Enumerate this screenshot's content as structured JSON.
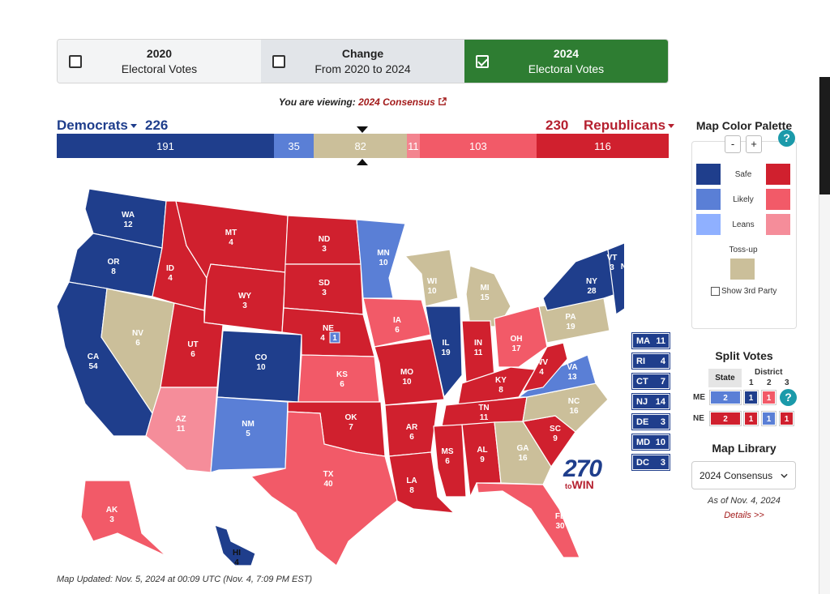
{
  "tabs": [
    {
      "title": "2020",
      "sub": "Electoral Votes"
    },
    {
      "title": "Change",
      "sub": "From 2020 to 2024"
    },
    {
      "title": "2024",
      "sub": "Electoral Votes"
    }
  ],
  "viewing": {
    "prefix": "You are viewing:",
    "value": "2024 Consensus"
  },
  "democrats": {
    "label": "Democrats",
    "total": "226"
  },
  "republicans": {
    "label": "Republicans",
    "total": "230"
  },
  "bar": [
    {
      "label": "191",
      "value": 191,
      "color": "#1f3e8c"
    },
    {
      "label": "35",
      "value": 35,
      "color": "#5a7fd6"
    },
    {
      "label": "82",
      "value": 82,
      "color": "#cbbf9a"
    },
    {
      "label": "11",
      "value": 11,
      "color": "#f3848f"
    },
    {
      "label": "103",
      "value": 103,
      "color": "#f25a68"
    },
    {
      "label": "116",
      "value": 116,
      "color": "#d0202e"
    }
  ],
  "colors": {
    "safe_d": "#1f3e8c",
    "likely_d": "#5a7fd6",
    "lean_d": "#8fb0ff",
    "tossup": "#cbbf9a",
    "lean_r": "#f58d9a",
    "likely_r": "#f25a68",
    "safe_r": "#d0202e",
    "tab_active": "#2e7d32"
  },
  "states": {
    "WA": "12",
    "OR": "8",
    "CA": "54",
    "NV": "6",
    "ID": "4",
    "MT": "4",
    "WY": "3",
    "UT": "6",
    "AZ": "11",
    "CO": "10",
    "NM": "5",
    "ND": "3",
    "SD": "3",
    "NE": "4",
    "NE_d": "1",
    "KS": "6",
    "OK": "7",
    "TX": "40",
    "MN": "10",
    "IA": "6",
    "MO": "10",
    "AR": "6",
    "LA": "8",
    "WI": "10",
    "IL": "19",
    "MS": "6",
    "MI": "15",
    "IN": "11",
    "KY": "8",
    "TN": "11",
    "AL": "9",
    "OH": "17",
    "GA": "16",
    "FL": "30",
    "SC": "9",
    "NC": "16",
    "VA": "13",
    "WV": "4",
    "PA": "19",
    "NY": "28",
    "VT": "3",
    "NH": "4",
    "ME": "2",
    "ME_d1": "1",
    "ME_d2": "1",
    "AK": "3",
    "HI": "4"
  },
  "small_states": [
    {
      "abbr": "MA",
      "ev": "11"
    },
    {
      "abbr": "RI",
      "ev": "4"
    },
    {
      "abbr": "CT",
      "ev": "7"
    },
    {
      "abbr": "NJ",
      "ev": "14"
    },
    {
      "abbr": "DE",
      "ev": "3"
    },
    {
      "abbr": "MD",
      "ev": "10"
    },
    {
      "abbr": "DC",
      "ev": "3"
    }
  ],
  "logo": {
    "number": "270",
    "to": "to",
    "win": "WIN"
  },
  "updated": "Map Updated: Nov. 5, 2024 at 00:09 UTC (Nov. 4, 7:09 PM EST)",
  "palette": {
    "title": "Map Color Palette",
    "minus": "-",
    "plus": "+",
    "help": "?",
    "safe": "Safe",
    "likely": "Likely",
    "leans": "Leans",
    "tossup": "Toss-up",
    "show3": "Show 3rd Party"
  },
  "split": {
    "title": "Split Votes",
    "state_hdr": "State",
    "district_hdr": "District",
    "d1": "1",
    "d2": "2",
    "d3": "3",
    "me": {
      "label": "ME",
      "state": "2",
      "d1": "1",
      "d2": "1"
    },
    "ne": {
      "label": "NE",
      "state": "2",
      "d1": "1",
      "d2": "1",
      "d3": "1"
    },
    "help": "?"
  },
  "library": {
    "title": "Map Library",
    "selected": "2024 Consensus",
    "as_of": "As of Nov. 4, 2024",
    "details": "Details >>"
  }
}
